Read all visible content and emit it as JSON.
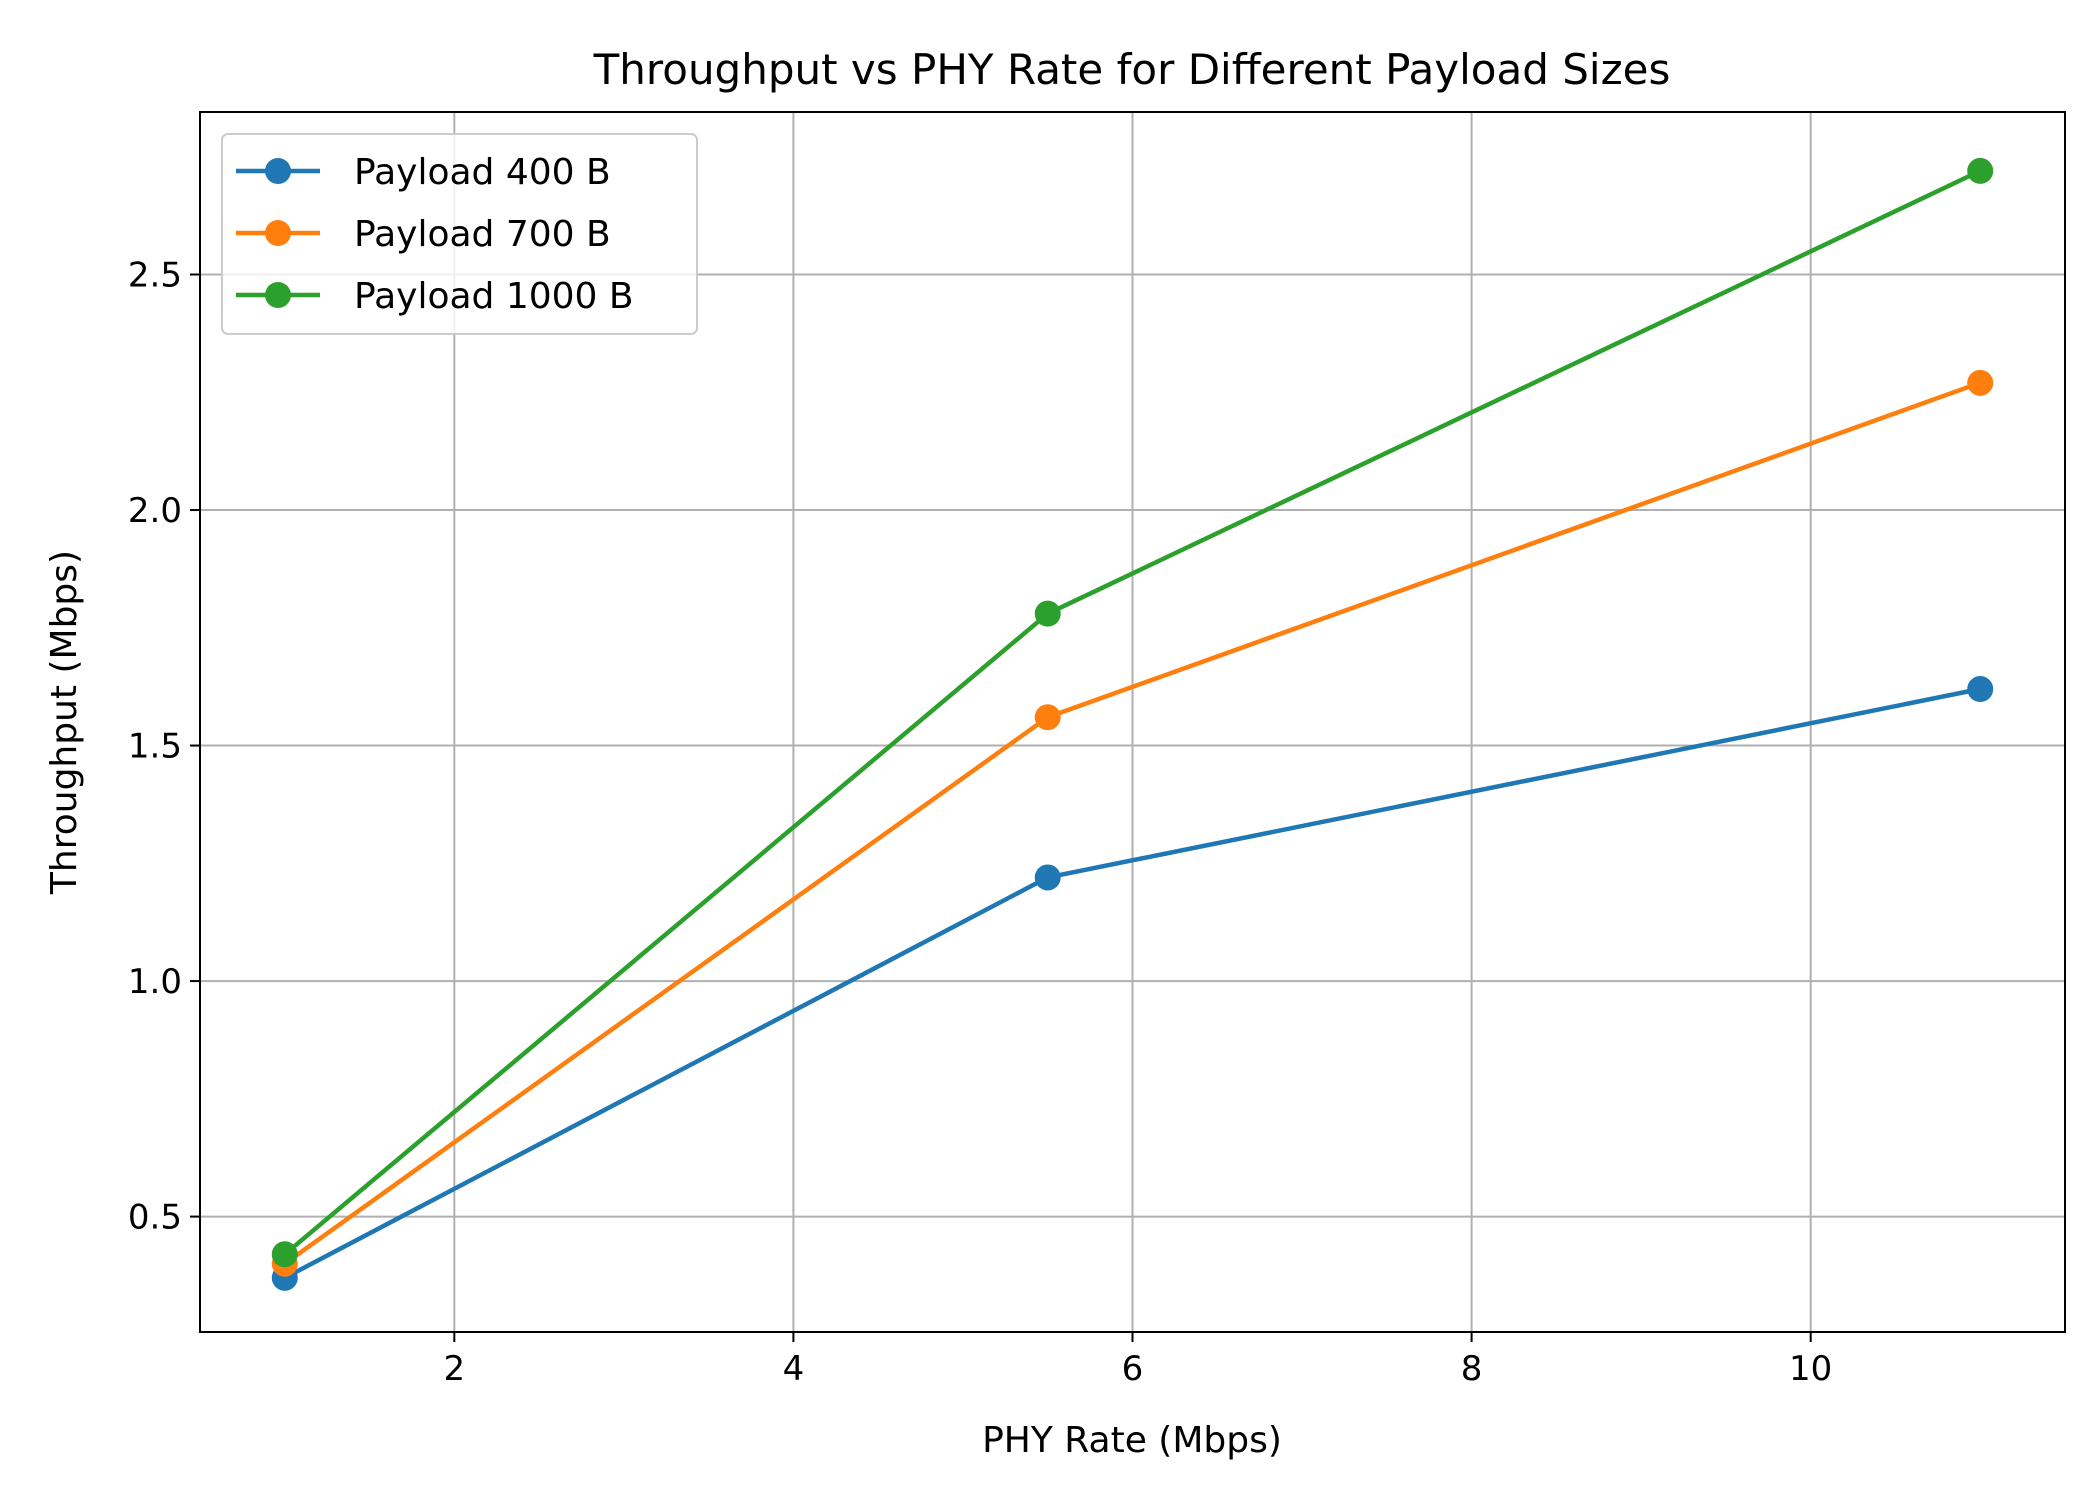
{
  "chart_data": {
    "type": "line",
    "title": "Throughput vs PHY Rate for Different Payload Sizes",
    "xlabel": "PHY Rate (Mbps)",
    "ylabel": "Throughput (Mbps)",
    "xlim": [
      0.5,
      11.5
    ],
    "ylim": [
      0.255,
      2.845
    ],
    "xticks": [
      2,
      4,
      6,
      8,
      10
    ],
    "yticks": [
      0.5,
      1.0,
      1.5,
      2.0,
      2.5
    ],
    "xtick_labels": [
      "2",
      "4",
      "6",
      "8",
      "10"
    ],
    "ytick_labels": [
      "0.5",
      "1.0",
      "1.5",
      "2.0",
      "2.5"
    ],
    "grid": true,
    "legend_position": "top-left",
    "x": [
      1,
      5.5,
      11
    ],
    "series": [
      {
        "name": "Payload 400 B",
        "color": "#1f77b4",
        "values": [
          0.37,
          1.22,
          1.62
        ]
      },
      {
        "name": "Payload 700 B",
        "color": "#ff7f0e",
        "values": [
          0.4,
          1.56,
          2.27
        ]
      },
      {
        "name": "Payload 1000 B",
        "color": "#2ca02c",
        "values": [
          0.42,
          1.78,
          2.72
        ]
      }
    ]
  }
}
